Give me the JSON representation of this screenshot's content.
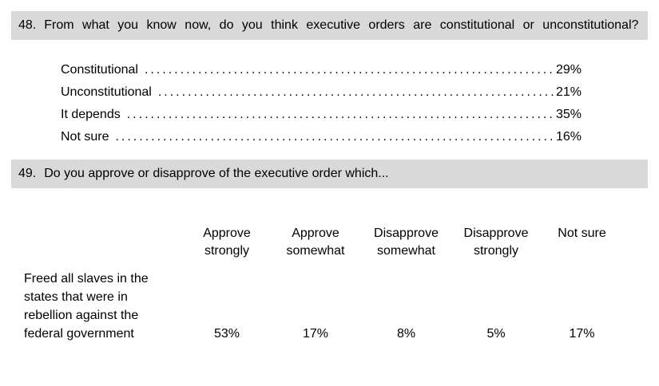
{
  "q48": {
    "number": "48.",
    "text": "From what you know now, do you think executive orders are constitutional or unconstitutional?",
    "options": [
      {
        "label": "Constitutional",
        "value": "29%"
      },
      {
        "label": "Unconstitutional",
        "value": "21%"
      },
      {
        "label": "It depends",
        "value": "35%"
      },
      {
        "label": "Not sure",
        "value": "16%"
      }
    ]
  },
  "q49": {
    "number": "49.",
    "text": "Do you approve or disapprove of the executive order which...",
    "columns": [
      "Approve strongly",
      "Approve somewhat",
      "Disapprove somewhat",
      "Disapprove strongly",
      "Not sure"
    ],
    "rows": [
      {
        "label": "Freed all slaves in the states that were in rebellion against the federal government",
        "values": [
          "53%",
          "17%",
          "8%",
          "5%",
          "17%"
        ]
      }
    ]
  },
  "colors": {
    "header_bar": "#d9d9d9"
  }
}
